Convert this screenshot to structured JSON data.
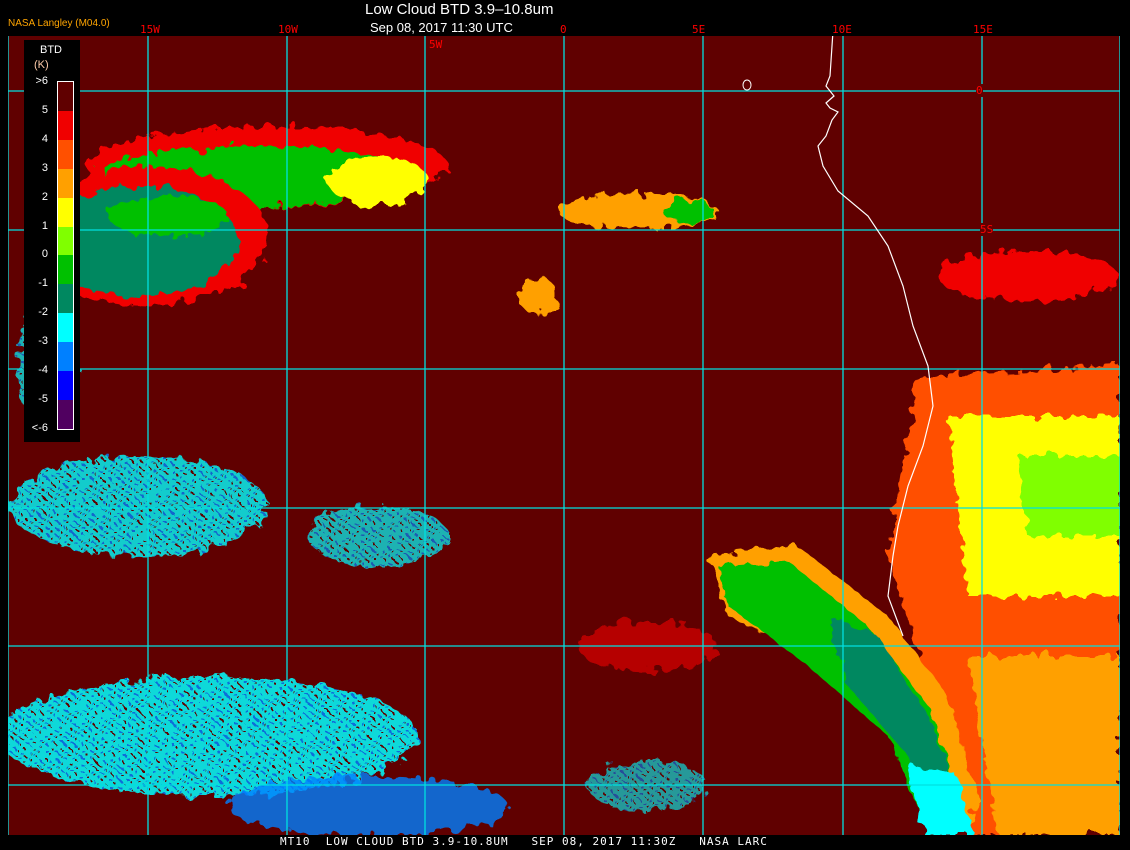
{
  "header": {
    "title": "Low Cloud BTD 3.9–10.8um",
    "datetime": "Sep 08, 2017 11:30 UTC",
    "credit": "NASA Langley (M04.0)"
  },
  "map": {
    "background_color": "#600000",
    "longitude_labels": [
      "15W",
      "10W",
      "5W",
      "0",
      "5E",
      "10E",
      "15E"
    ],
    "latitude_labels": [
      "0",
      "5S"
    ],
    "grid_color": "#00e0e0",
    "coastline_color": "#ffffff"
  },
  "legend": {
    "title": "BTD",
    "unit": "(K)",
    "ticks": [
      ">6",
      "5",
      "4",
      "3",
      "2",
      "1",
      "0",
      "-1",
      "-2",
      "-3",
      "-4",
      "-5",
      "<-6"
    ],
    "colors": [
      "#600000",
      "#f00000",
      "#ff5000",
      "#ffa000",
      "#ffff00",
      "#80ff00",
      "#00c000",
      "#008860",
      "#00ffff",
      "#0080ff",
      "#0000ff",
      "#500060"
    ]
  },
  "footer": {
    "text": "MT10  LOW CLOUD BTD 3.9-10.8UM   SEP 08, 2017 11:30Z   NASA LARC"
  }
}
